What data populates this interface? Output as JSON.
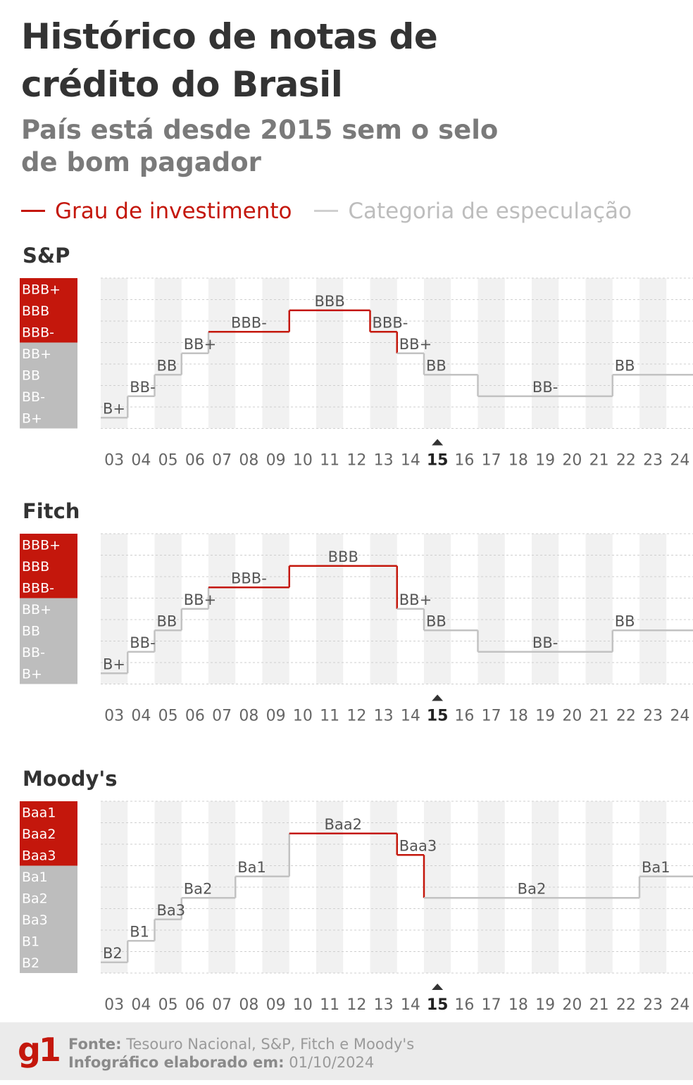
{
  "title": "Histórico de notas de crédito do Brasil",
  "subtitle": "País está desde 2015 sem o selo de bom pagador",
  "legend": {
    "investment": "Grau de investimento",
    "speculative": "Categoria de especulação"
  },
  "colors": {
    "investment": "#c4170c",
    "speculative": "#bdbdbd",
    "title": "#333333",
    "subtitle": "#7a7a7a"
  },
  "highlight_year": "15",
  "footer": {
    "logo": "g1",
    "source_label": "Fonte:",
    "source_text": "Tesouro Nacional, S&P, Fitch e Moody's",
    "date_label": "Infográfico elaborado em:",
    "date_text": "01/10/2024"
  },
  "chart_data": [
    {
      "type": "line",
      "step": true,
      "title": "S&P",
      "x": [
        "03",
        "04",
        "05",
        "06",
        "07",
        "08",
        "09",
        "10",
        "11",
        "12",
        "13",
        "14",
        "15",
        "16",
        "17",
        "18",
        "19",
        "20",
        "21",
        "22",
        "23",
        "24"
      ],
      "scale": [
        "BBB+",
        "BBB",
        "BBB-",
        "BB+",
        "BB",
        "BB-",
        "B+"
      ],
      "investment_scale": [
        "BBB+",
        "BBB",
        "BBB-"
      ],
      "segments": [
        {
          "from": 2003,
          "to": 2004,
          "rating": "B+"
        },
        {
          "from": 2004,
          "to": 2005,
          "rating": "BB-"
        },
        {
          "from": 2005,
          "to": 2006,
          "rating": "BB"
        },
        {
          "from": 2006,
          "to": 2007,
          "rating": "BB+"
        },
        {
          "from": 2007,
          "to": 2010,
          "rating": "BBB-"
        },
        {
          "from": 2010,
          "to": 2013,
          "rating": "BBB"
        },
        {
          "from": 2013,
          "to": 2014,
          "rating": "BBB-"
        },
        {
          "from": 2014,
          "to": 2015,
          "rating": "BB+"
        },
        {
          "from": 2015,
          "to": 2017,
          "rating": "BB"
        },
        {
          "from": 2017,
          "to": 2022,
          "rating": "BB-"
        },
        {
          "from": 2022,
          "to": 2024,
          "rating": "BB"
        }
      ]
    },
    {
      "type": "line",
      "step": true,
      "title": "Fitch",
      "x": [
        "03",
        "04",
        "05",
        "06",
        "07",
        "08",
        "09",
        "10",
        "11",
        "12",
        "13",
        "14",
        "15",
        "16",
        "17",
        "18",
        "19",
        "20",
        "21",
        "22",
        "23",
        "24"
      ],
      "scale": [
        "BBB+",
        "BBB",
        "BBB-",
        "BB+",
        "BB",
        "BB-",
        "B+"
      ],
      "investment_scale": [
        "BBB+",
        "BBB",
        "BBB-"
      ],
      "segments": [
        {
          "from": 2003,
          "to": 2004,
          "rating": "B+"
        },
        {
          "from": 2004,
          "to": 2005,
          "rating": "BB-"
        },
        {
          "from": 2005,
          "to": 2006,
          "rating": "BB"
        },
        {
          "from": 2006,
          "to": 2007,
          "rating": "BB+"
        },
        {
          "from": 2007,
          "to": 2010,
          "rating": "BBB-"
        },
        {
          "from": 2010,
          "to": 2014,
          "rating": "BBB"
        },
        {
          "from": 2014,
          "to": 2015,
          "rating": "BB+"
        },
        {
          "from": 2015,
          "to": 2017,
          "rating": "BB"
        },
        {
          "from": 2017,
          "to": 2022,
          "rating": "BB-"
        },
        {
          "from": 2022,
          "to": 2024,
          "rating": "BB"
        }
      ]
    },
    {
      "type": "line",
      "step": true,
      "title": "Moody's",
      "x": [
        "03",
        "04",
        "05",
        "06",
        "07",
        "08",
        "09",
        "10",
        "11",
        "12",
        "13",
        "14",
        "15",
        "16",
        "17",
        "18",
        "19",
        "20",
        "21",
        "22",
        "23",
        "24"
      ],
      "scale": [
        "Baa1",
        "Baa2",
        "Baa3",
        "Ba1",
        "Ba2",
        "Ba3",
        "B1",
        "B2"
      ],
      "investment_scale": [
        "Baa1",
        "Baa2",
        "Baa3"
      ],
      "segments": [
        {
          "from": 2003,
          "to": 2004,
          "rating": "B2"
        },
        {
          "from": 2004,
          "to": 2005,
          "rating": "B1"
        },
        {
          "from": 2005,
          "to": 2006,
          "rating": "Ba3"
        },
        {
          "from": 2006,
          "to": 2008,
          "rating": "Ba2"
        },
        {
          "from": 2008,
          "to": 2010,
          "rating": "Ba1"
        },
        {
          "from": 2010,
          "to": 2014,
          "rating": "Baa2"
        },
        {
          "from": 2014,
          "to": 2015,
          "rating": "Baa3"
        },
        {
          "from": 2015,
          "to": 2023,
          "rating": "Ba2"
        },
        {
          "from": 2023,
          "to": 2024,
          "rating": "Ba1"
        }
      ]
    }
  ]
}
